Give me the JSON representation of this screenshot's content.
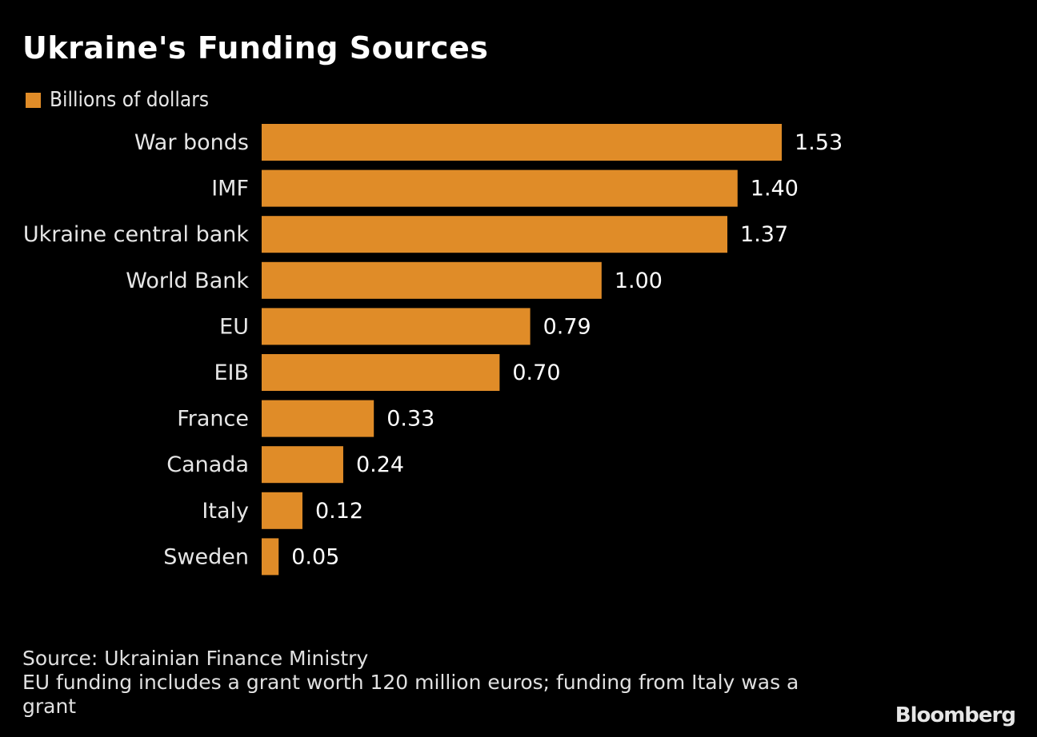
{
  "chart_data": {
    "type": "bar",
    "orientation": "horizontal",
    "title": "Ukraine's Funding Sources",
    "legend": [
      {
        "name": "Billions of dollars",
        "color": "#e08c28"
      }
    ],
    "legend_position": "top-left",
    "categories": [
      "War bonds",
      "IMF",
      "Ukraine central bank",
      "World Bank",
      "EU",
      "EIB",
      "France",
      "Canada",
      "Italy",
      "Sweden"
    ],
    "values": [
      1.53,
      1.4,
      1.37,
      1.0,
      0.79,
      0.7,
      0.33,
      0.24,
      0.12,
      0.05
    ],
    "value_labels": [
      "1.53",
      "1.40",
      "1.37",
      "1.00",
      "0.79",
      "0.70",
      "0.33",
      "0.24",
      "0.12",
      "0.05"
    ],
    "xlabel": "",
    "ylabel": "",
    "xlim": [
      0,
      1.53
    ],
    "grid": false,
    "bar_color": "#e08c28"
  },
  "footer": {
    "source": "Source: Ukrainian Finance Ministry",
    "note": "EU funding includes a grant worth 120 million euros; funding from Italy was a grant"
  },
  "brand": "Bloomberg"
}
